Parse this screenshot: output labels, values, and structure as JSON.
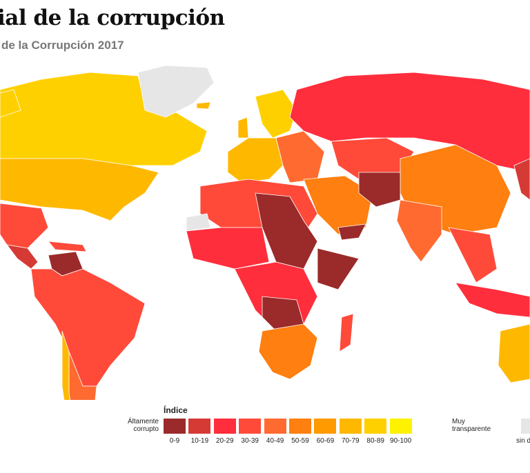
{
  "title": "ial de la corrupción",
  "subtitle": "de la Corrupción 2017",
  "legend": {
    "title": "Índice",
    "low_label": "Áltamente corrupto",
    "high_label": "Muy transparente",
    "no_data_label": "sin d",
    "no_data_color": "#e6e6e6",
    "bins": [
      {
        "range": "0-9",
        "color": "#9b2a2a"
      },
      {
        "range": "10-19",
        "color": "#d63a35"
      },
      {
        "range": "20-29",
        "color": "#ff2e3c"
      },
      {
        "range": "30-39",
        "color": "#ff4a3a"
      },
      {
        "range": "40-49",
        "color": "#ff6a30"
      },
      {
        "range": "50-59",
        "color": "#ff7f10"
      },
      {
        "range": "60-69",
        "color": "#ff9a00"
      },
      {
        "range": "70-79",
        "color": "#ffb800"
      },
      {
        "range": "80-89",
        "color": "#ffd000"
      },
      {
        "range": "90-100",
        "color": "#fff200"
      }
    ]
  }
}
